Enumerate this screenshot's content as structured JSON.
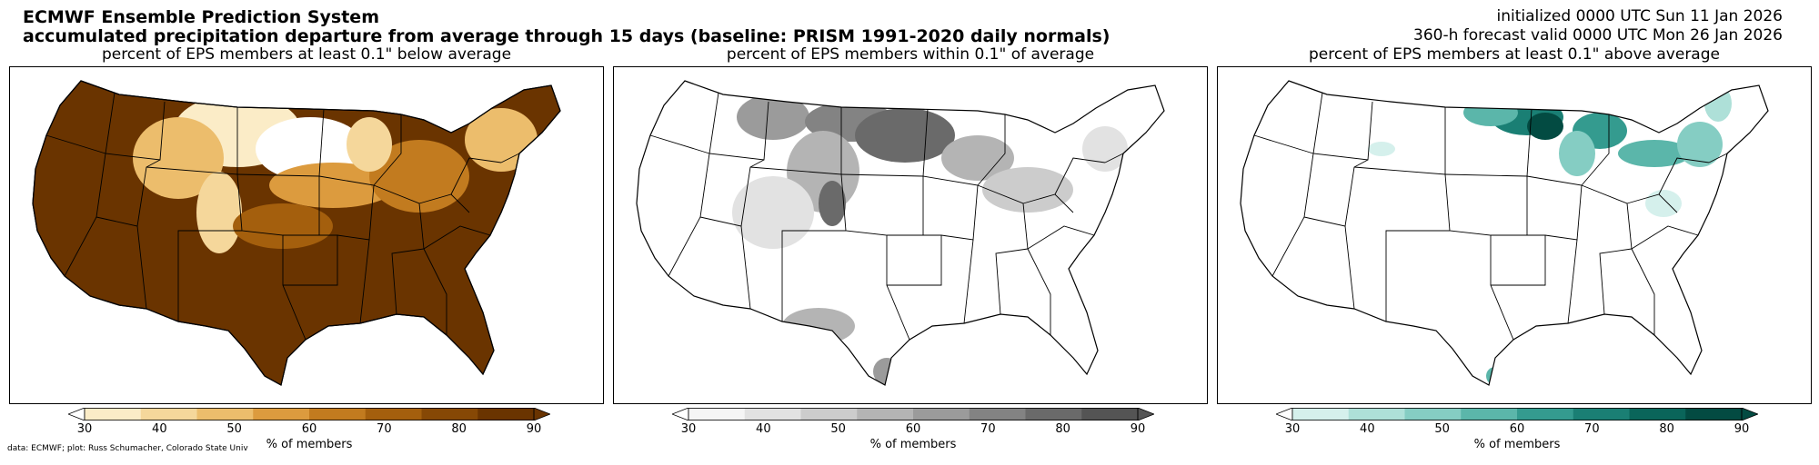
{
  "header": {
    "title": "ECMWF Ensemble Prediction System",
    "subtitle": "accumulated precipitation departure from average through 15 days (baseline: PRISM 1991-2020 daily normals)",
    "initialized": "initialized 0000 UTC Sun 11 Jan 2026",
    "valid": "360-h forecast valid 0000 UTC Mon 26 Jan 2026"
  },
  "panels": [
    {
      "title": "percent of EPS members at least 0.1\" below average",
      "colorbar_label": "% of members",
      "colors": [
        "#fbecc7",
        "#f5d79b",
        "#ecbd6c",
        "#dc9b3e",
        "#c27b1f",
        "#a45f0d",
        "#864805",
        "#6a3400"
      ]
    },
    {
      "title": "percent of EPS members within 0.1\" of average",
      "colorbar_label": "% of members",
      "colors": [
        "#f5f5f5",
        "#e2e2e2",
        "#cccccc",
        "#b4b4b4",
        "#9b9b9b",
        "#838383",
        "#6a6a6a",
        "#545454"
      ]
    },
    {
      "title": "percent of EPS members at least 0.1\" above average",
      "colorbar_label": "% of members",
      "colors": [
        "#d5f0ec",
        "#aee0d8",
        "#85cdc3",
        "#5bb6aa",
        "#349b8f",
        "#1a7f74",
        "#0a655a",
        "#034b42"
      ]
    }
  ],
  "colorbar_ticks": [
    "30",
    "40",
    "50",
    "60",
    "70",
    "80",
    "90"
  ],
  "credit": "data: ECMWF; plot: Russ Schumacher, Colorado State Univ"
}
